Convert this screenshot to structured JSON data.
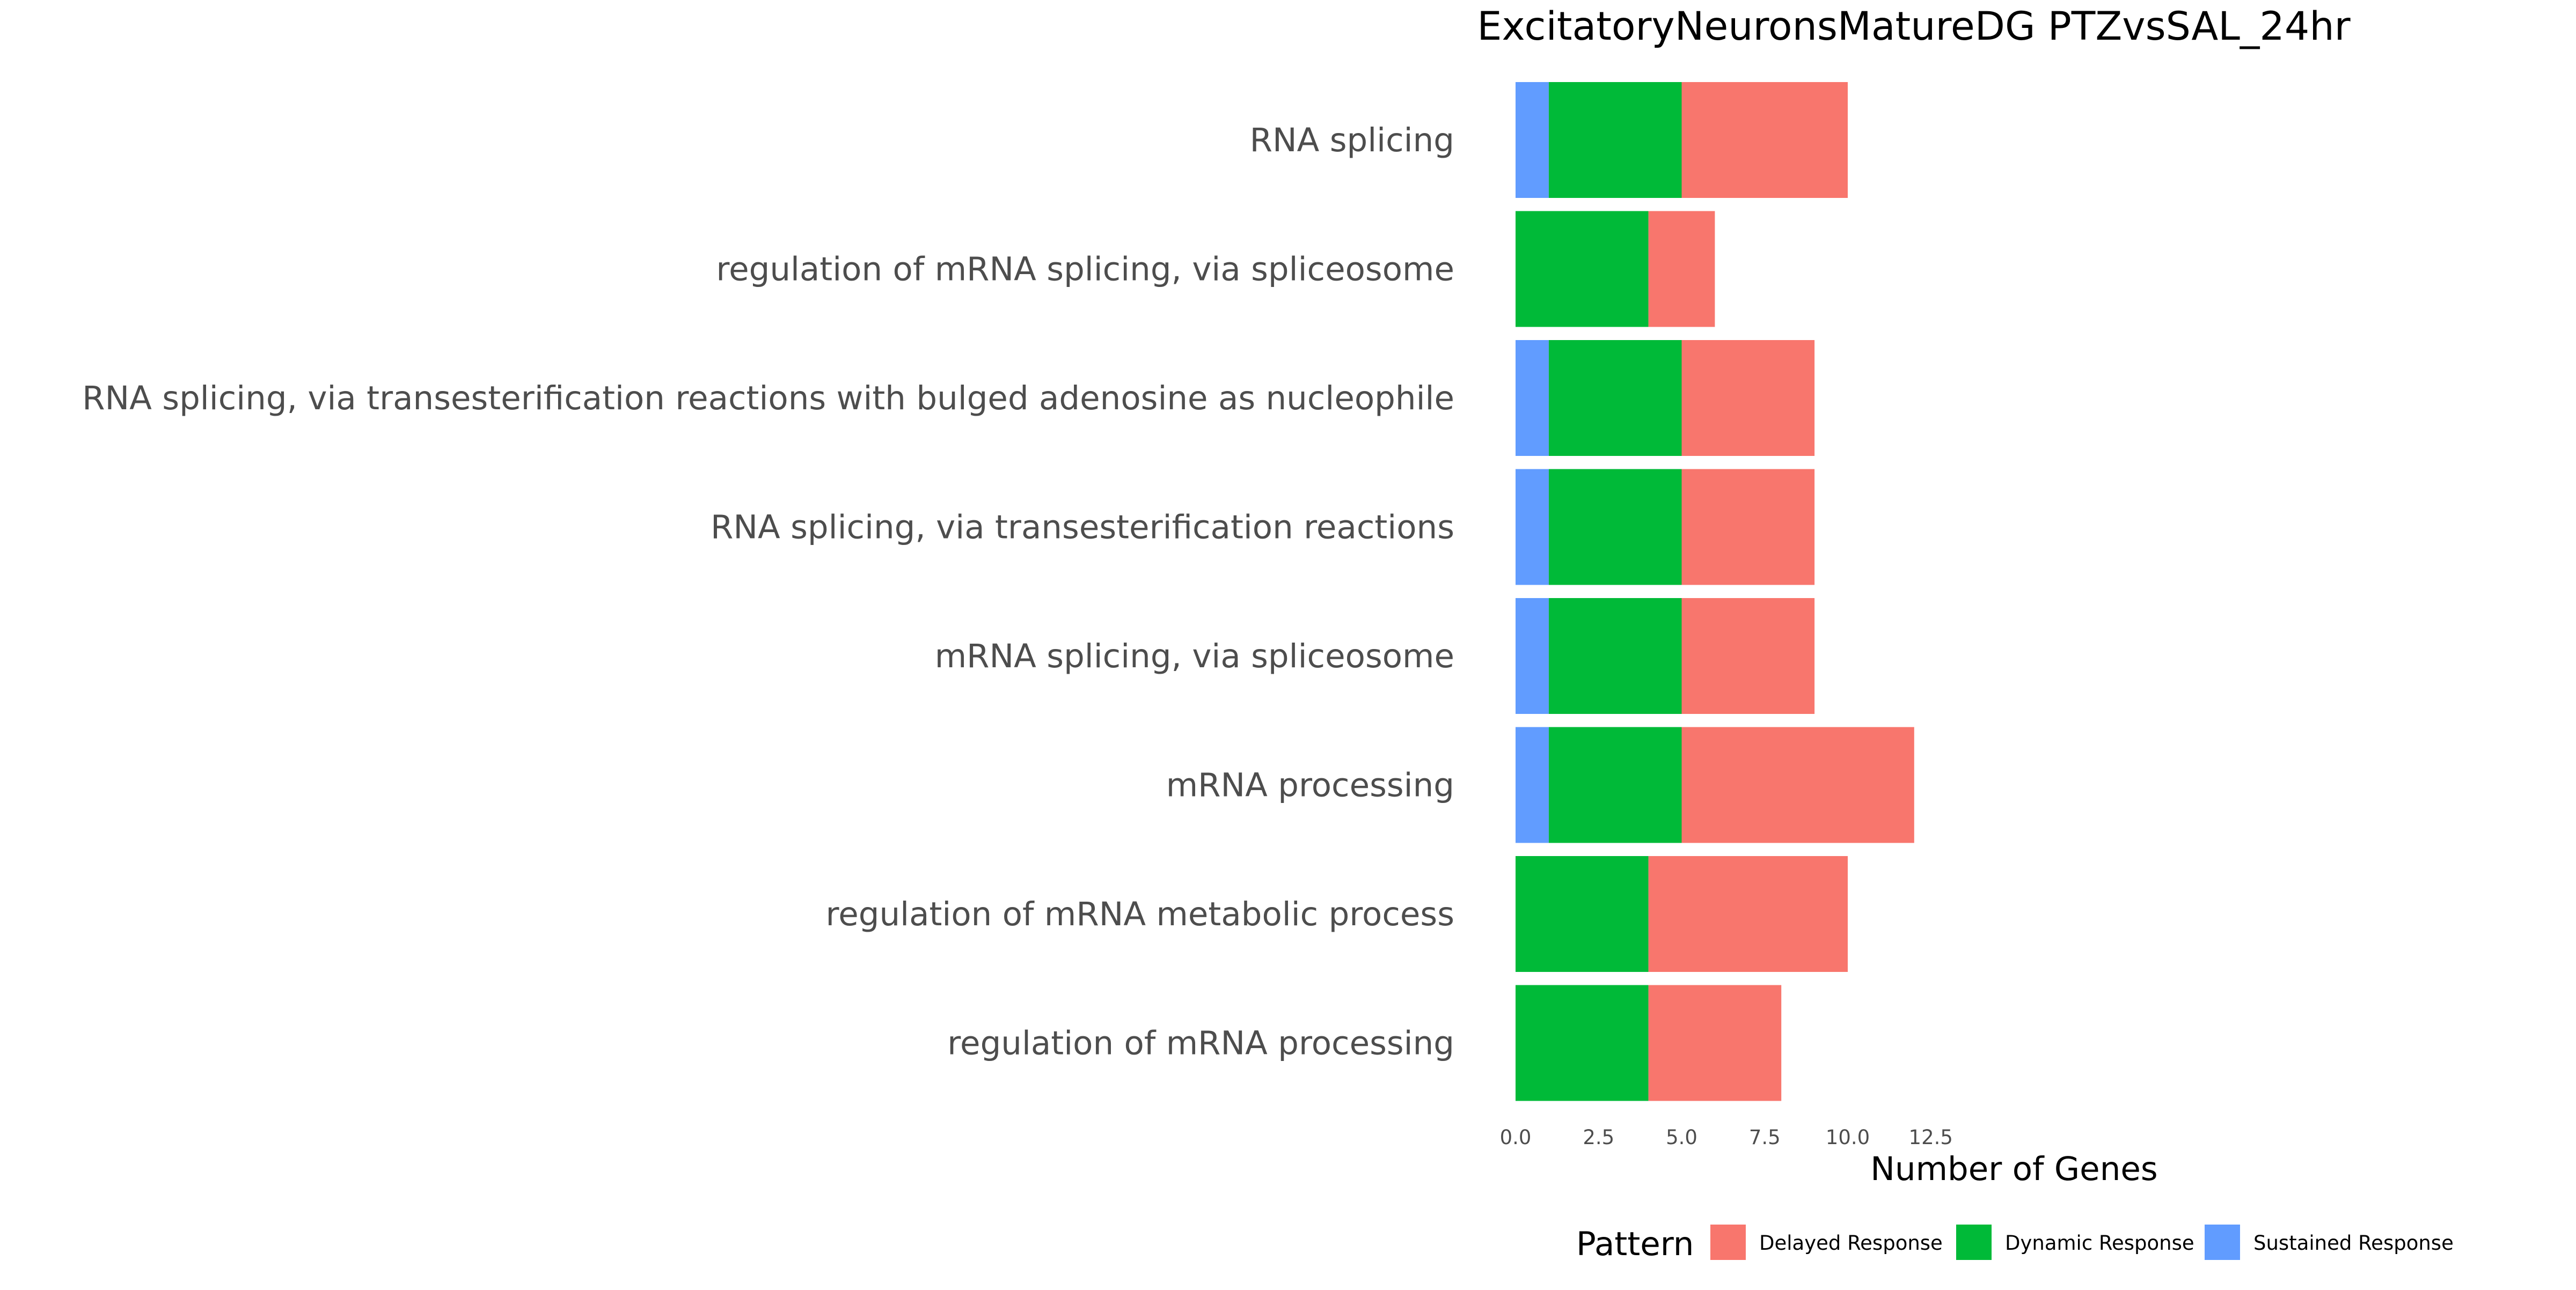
{
  "chart_data": {
    "type": "bar",
    "orientation": "horizontal",
    "stacked": true,
    "title": "ExcitatoryNeuronsMatureDG PTZvsSAL_24hr",
    "xlabel": "Number of Genes",
    "ylabel": "",
    "xlim": [
      0,
      12.5
    ],
    "x_ticks": [
      "0.0",
      "2.5",
      "5.0",
      "7.5",
      "10.0",
      "12.5"
    ],
    "grid": false,
    "legend_position": "bottom",
    "legend_title": "Pattern",
    "categories": [
      "RNA splicing",
      "regulation of mRNA splicing, via spliceosome",
      "RNA splicing, via transesterification reactions with bulged adenosine as nucleophile",
      "RNA splicing, via transesterification reactions",
      "mRNA splicing, via spliceosome",
      "mRNA processing",
      "regulation of mRNA metabolic process",
      "regulation of mRNA processing"
    ],
    "stack_order": [
      "Sustained Response",
      "Dynamic Response",
      "Delayed Response"
    ],
    "series": [
      {
        "name": "Delayed Response",
        "color": "#F8766D",
        "values": [
          5,
          2,
          4,
          4,
          4,
          7,
          6,
          4
        ]
      },
      {
        "name": "Dynamic Response",
        "color": "#00BA38",
        "values": [
          4,
          4,
          4,
          4,
          4,
          4,
          4,
          4
        ]
      },
      {
        "name": "Sustained Response",
        "color": "#619CFF",
        "values": [
          1,
          0,
          1,
          1,
          1,
          1,
          0,
          0
        ]
      }
    ]
  }
}
